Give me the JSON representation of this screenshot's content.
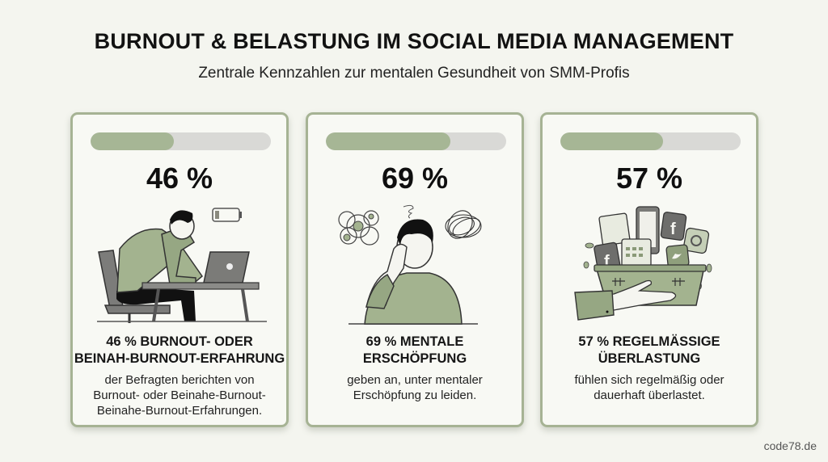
{
  "header": {
    "title": "BURNOUT & BELASTUNG IM SOCIAL MEDIA MANAGEMENT",
    "subtitle": "Zentrale Kennzahlen zur mentalen Gesundheit von SMM-Profis"
  },
  "colors": {
    "accent": "#a6b695",
    "card_border": "#a6b394",
    "bar_track": "#d9d9d6",
    "background": "#f4f5ef"
  },
  "cards": [
    {
      "percent": 46,
      "value_label": "46 %",
      "heading": "46 % BURNOUT- ODER\nBEINAH-BURNOUT-ERFAHRUNG",
      "description": "der Befragten berichten von\nBurnout- oder Beinahe-Burnout-\nBeinahe-Burnout-Erfahrungen.",
      "illustration": "exhausted-man-at-laptop-with-low-battery-icon"
    },
    {
      "percent": 69,
      "value_label": "69 %",
      "heading": "69 % MENTALE\nERSCHÖPFUNG",
      "description": "geben an, unter mentaler\nErschöpfung zu leiden.",
      "illustration": "man-rubbing-eyes-with-tangled-thoughts-icon"
    },
    {
      "percent": 57,
      "value_label": "57 %",
      "heading": "57 % REGELMÄSSIGE\nÜBERLASTUNG",
      "description": "fühlen sich regelmäßig oder\ndauerhaft überlastet.",
      "illustration": "overflowing-basket-of-devices-and-social-apps-icon"
    }
  ],
  "chart_data": {
    "type": "bar",
    "title": "BURNOUT & BELASTUNG IM SOCIAL MEDIA MANAGEMENT",
    "subtitle": "Zentrale Kennzahlen zur mentalen Gesundheit von SMM-Profis",
    "categories": [
      "Burnout- oder Beinah-Burnout-Erfahrung",
      "Mentale Erschöpfung",
      "Regelmäßige Überlastung"
    ],
    "values": [
      46,
      69,
      57
    ],
    "ylim": [
      0,
      100
    ],
    "ylabel": "%",
    "xlabel": ""
  },
  "footer": {
    "watermark": "code78.de"
  }
}
